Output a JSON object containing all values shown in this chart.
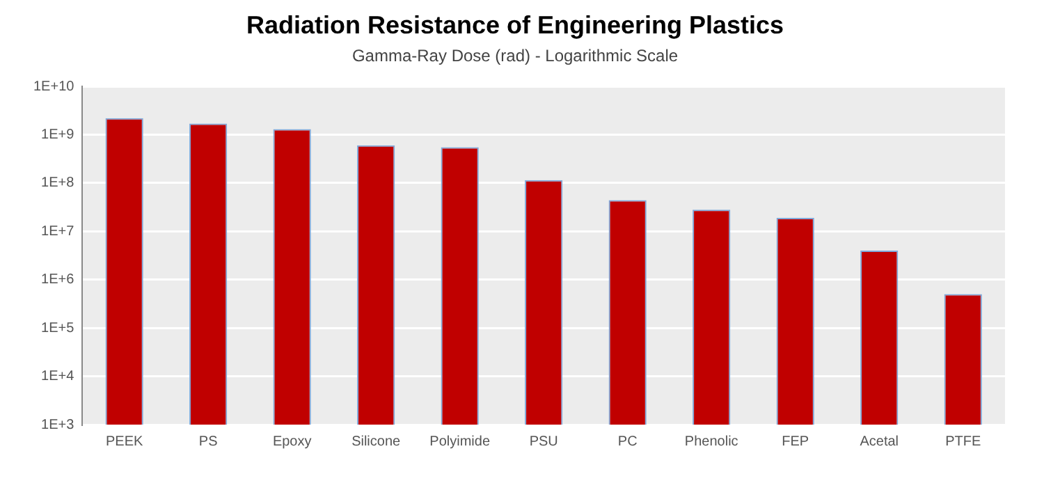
{
  "chart_data": {
    "type": "bar",
    "title": "Radiation Resistance of Engineering Plastics",
    "subtitle": "Gamma-Ray Dose (rad) - Logarithmic Scale",
    "categories": [
      "PEEK",
      "PS",
      "Epoxy",
      "Silicone",
      "Polyimide",
      "PSU",
      "PC",
      "Phenolic",
      "FEP",
      "Acetal",
      "PTFE"
    ],
    "values": [
      2200000000,
      1700000000,
      1300000000,
      600000000,
      550000000,
      115000000,
      44000000,
      28000000,
      19000000,
      4000000,
      500000
    ],
    "color": "#c00000",
    "log": true,
    "ylim": [
      1000,
      10000000000
    ],
    "yticks": [
      {
        "value": 1000,
        "label": "1E+3"
      },
      {
        "value": 10000,
        "label": "1E+4"
      },
      {
        "value": 100000,
        "label": "1E+5"
      },
      {
        "value": 1000000,
        "label": "1E+6"
      },
      {
        "value": 10000000,
        "label": "1E+7"
      },
      {
        "value": 100000000,
        "label": "1E+8"
      },
      {
        "value": 1000000000,
        "label": "1E+9"
      },
      {
        "value": 10000000000,
        "label": "1E+10"
      }
    ],
    "grid": "y",
    "legend": false
  }
}
